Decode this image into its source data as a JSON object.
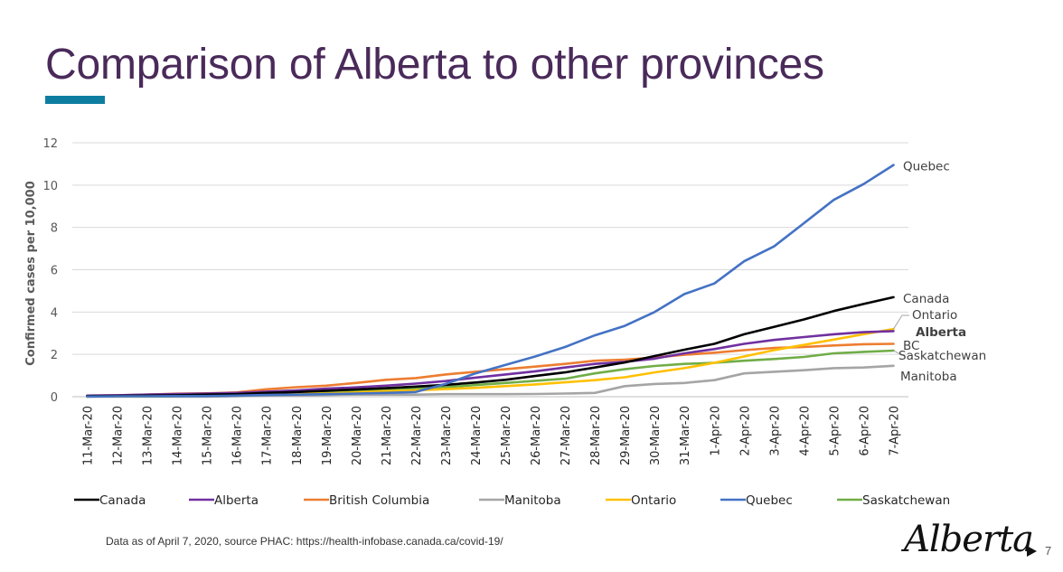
{
  "slide": {
    "title": "Comparison of Alberta to other provinces",
    "accent_color": "#0e7ea0",
    "title_color": "#4a2a5a",
    "source_text": "Data as of April 7, 2020, source PHAC: https://health-infobase.canada.ca/covid-19/",
    "logo_text": "Alberta",
    "page_number": "7"
  },
  "chart_data": {
    "type": "line",
    "title": "",
    "xlabel": "",
    "ylabel": "Confirmed cases per 10,000",
    "ylim": [
      0,
      12
    ],
    "yticks": [
      0,
      2,
      4,
      6,
      8,
      10,
      12
    ],
    "grid": true,
    "legend_placement": "bottom",
    "categories": [
      "11-Mar-20",
      "12-Mar-20",
      "13-Mar-20",
      "14-Mar-20",
      "15-Mar-20",
      "16-Mar-20",
      "17-Mar-20",
      "18-Mar-20",
      "19-Mar-20",
      "20-Mar-20",
      "21-Mar-20",
      "22-Mar-20",
      "23-Mar-20",
      "24-Mar-20",
      "25-Mar-20",
      "26-Mar-20",
      "27-Mar-20",
      "28-Mar-20",
      "29-Mar-20",
      "30-Mar-20",
      "31-Mar-20",
      "1-Apr-20",
      "2-Apr-20",
      "3-Apr-20",
      "4-Apr-20",
      "5-Apr-20",
      "6-Apr-20",
      "7-Apr-20"
    ],
    "series": [
      {
        "name": "Canada",
        "color": "#000000",
        "end_label": "Canada",
        "end_label_bold": false,
        "values": [
          0.03,
          0.04,
          0.05,
          0.07,
          0.1,
          0.12,
          0.18,
          0.22,
          0.28,
          0.34,
          0.4,
          0.48,
          0.56,
          0.67,
          0.8,
          0.98,
          1.15,
          1.38,
          1.62,
          1.92,
          2.22,
          2.5,
          2.95,
          3.3,
          3.65,
          4.05,
          4.38,
          4.7
        ]
      },
      {
        "name": "Alberta",
        "color": "#7030a0",
        "end_label": "Alberta",
        "end_label_bold": true,
        "values": [
          0.05,
          0.07,
          0.1,
          0.13,
          0.15,
          0.18,
          0.24,
          0.3,
          0.38,
          0.44,
          0.52,
          0.62,
          0.74,
          0.9,
          1.05,
          1.2,
          1.38,
          1.55,
          1.65,
          1.8,
          2.05,
          2.25,
          2.5,
          2.68,
          2.82,
          2.95,
          3.05,
          3.1
        ]
      },
      {
        "name": "British Columbia",
        "color": "#ed7d31",
        "end_label": "BC",
        "end_label_bold": false,
        "values": [
          0.05,
          0.06,
          0.1,
          0.14,
          0.16,
          0.2,
          0.35,
          0.45,
          0.52,
          0.65,
          0.8,
          0.88,
          1.05,
          1.18,
          1.3,
          1.42,
          1.55,
          1.7,
          1.75,
          1.85,
          1.98,
          2.08,
          2.2,
          2.3,
          2.35,
          2.42,
          2.48,
          2.5
        ]
      },
      {
        "name": "Manitoba",
        "color": "#a5a5a5",
        "end_label": "Manitoba",
        "end_label_bold": false,
        "values": [
          0,
          0,
          0,
          0,
          0,
          0.02,
          0.05,
          0.06,
          0.08,
          0.1,
          0.1,
          0.1,
          0.12,
          0.12,
          0.12,
          0.13,
          0.15,
          0.18,
          0.5,
          0.6,
          0.65,
          0.78,
          1.1,
          1.18,
          1.25,
          1.35,
          1.38,
          1.46
        ]
      },
      {
        "name": "Ontario",
        "color": "#ffc000",
        "end_label": "Ontario",
        "end_label_bold": false,
        "values": [
          0.02,
          0.03,
          0.03,
          0.04,
          0.05,
          0.06,
          0.1,
          0.13,
          0.15,
          0.2,
          0.26,
          0.3,
          0.36,
          0.42,
          0.5,
          0.58,
          0.68,
          0.78,
          0.92,
          1.15,
          1.35,
          1.6,
          1.9,
          2.2,
          2.45,
          2.7,
          2.95,
          3.2
        ]
      },
      {
        "name": "Quebec",
        "color": "#4472c4",
        "end_label": "Quebec",
        "end_label_bold": false,
        "values": [
          0.01,
          0.02,
          0.02,
          0.03,
          0.03,
          0.05,
          0.08,
          0.1,
          0.12,
          0.15,
          0.18,
          0.22,
          0.6,
          1.1,
          1.5,
          1.9,
          2.35,
          2.9,
          3.35,
          4.0,
          4.85,
          5.35,
          6.4,
          7.1,
          8.2,
          9.3,
          10.05,
          10.95
        ]
      },
      {
        "name": "Saskatchewan",
        "color": "#70ad47",
        "end_label": "Saskatchewan",
        "end_label_bold": false,
        "values": [
          0.01,
          0.02,
          0.02,
          0.03,
          0.04,
          0.05,
          0.1,
          0.12,
          0.18,
          0.25,
          0.32,
          0.38,
          0.45,
          0.55,
          0.65,
          0.75,
          0.85,
          1.1,
          1.3,
          1.45,
          1.55,
          1.6,
          1.7,
          1.78,
          1.88,
          2.05,
          2.12,
          2.18
        ]
      }
    ]
  }
}
